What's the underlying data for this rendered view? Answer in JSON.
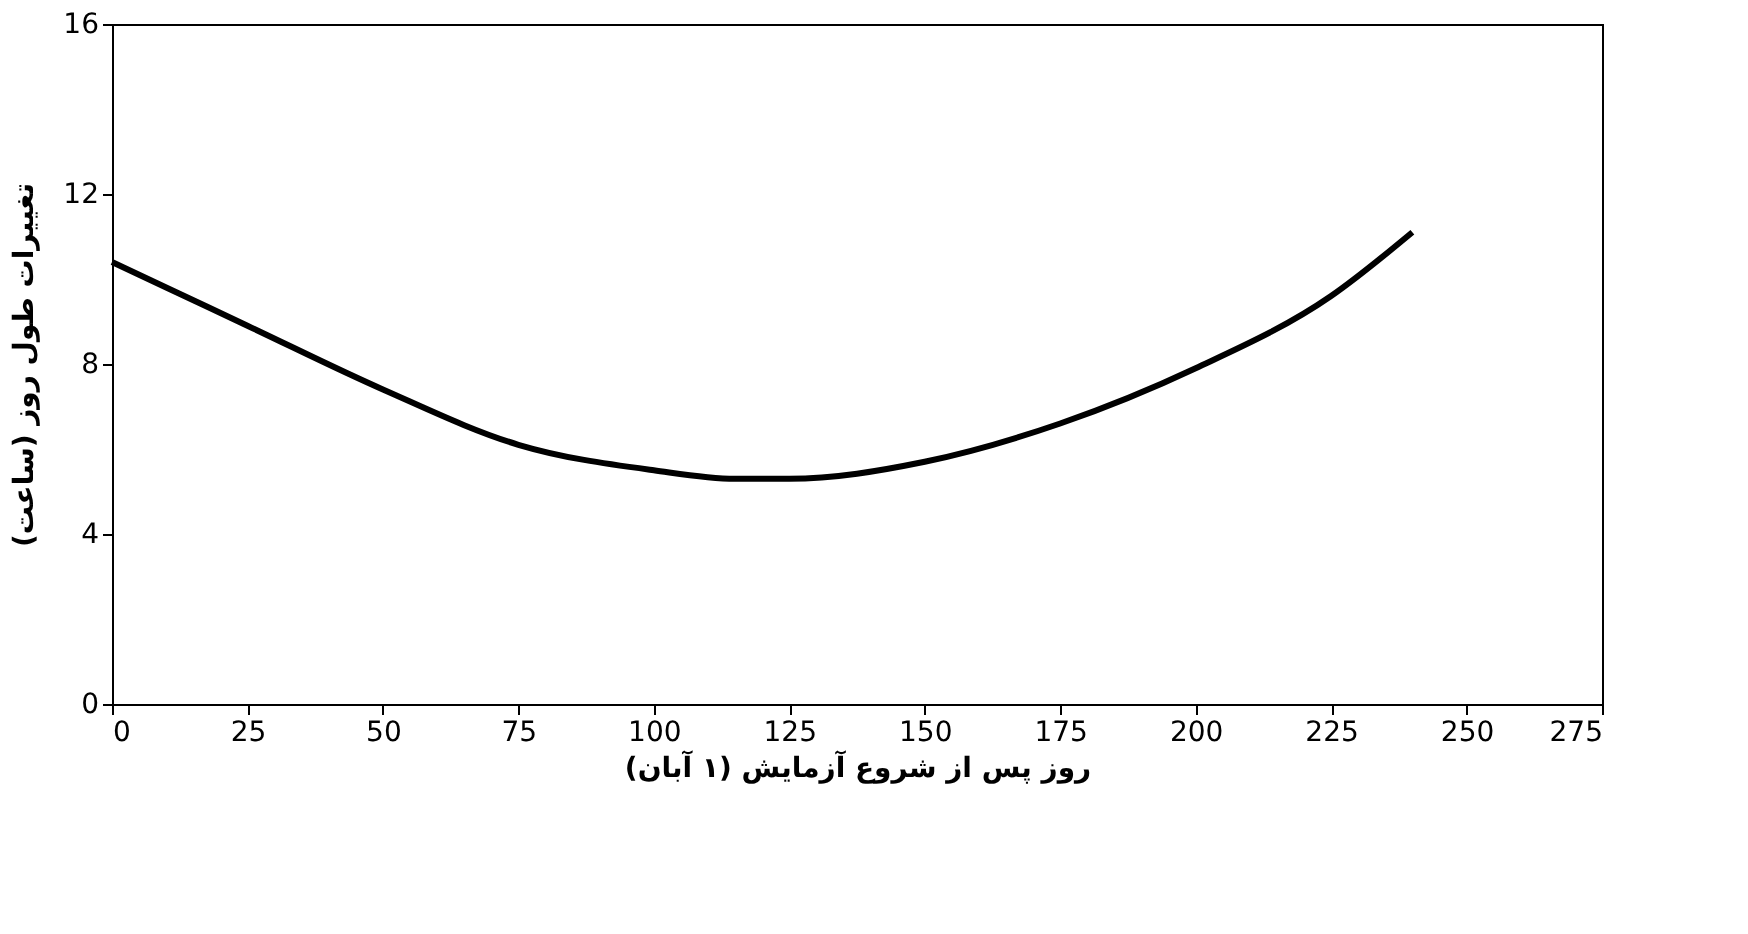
{
  "chart_data": {
    "type": "line",
    "xlabel": "روز پس از شروع آزمایش (۱ آبان)",
    "ylabel": "تغییرات طول روز (ساعت)",
    "x": [
      0,
      10,
      25,
      50,
      75,
      100,
      115,
      125,
      150,
      175,
      200,
      225,
      240
    ],
    "series": [
      {
        "color": "#000000",
        "values": [
          10.4,
          9.8,
          8.9,
          7.4,
          6.1,
          5.5,
          5.3,
          5.3,
          5.7,
          6.6,
          7.9,
          9.6,
          11.1
        ]
      }
    ],
    "xlim": [
      0,
      275
    ],
    "xticks": [
      0,
      25,
      50,
      75,
      100,
      125,
      150,
      175,
      200,
      225,
      250,
      275
    ],
    "ylim": [
      0,
      16
    ],
    "yticks": [
      0,
      4,
      8,
      12,
      16
    ],
    "grid": false,
    "legend": false,
    "marker": "none",
    "line_style": "solid"
  }
}
